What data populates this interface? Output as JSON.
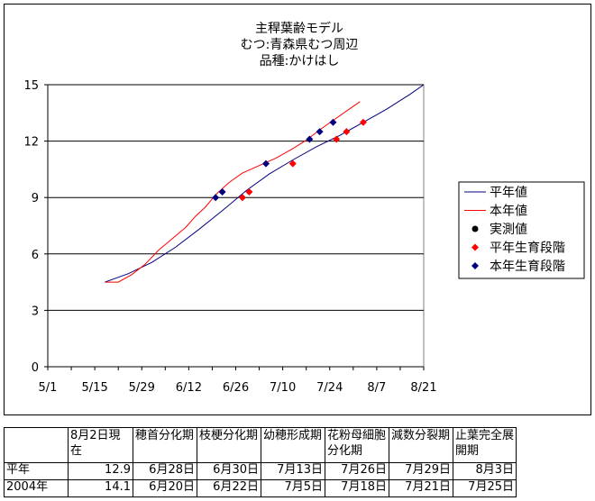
{
  "chart_data": {
    "type": "line",
    "title": [
      "主稈葉齢モデル",
      "むつ:青森県むつ周辺",
      "品種:かけはし"
    ],
    "xlabel": "",
    "ylabel": "",
    "x_ticks": [
      "5/1",
      "5/15",
      "5/29",
      "6/12",
      "6/26",
      "7/10",
      "7/24",
      "8/7",
      "8/21"
    ],
    "x_range": [
      "5/1",
      "8/21"
    ],
    "y_ticks": [
      0,
      3,
      6,
      9,
      12,
      15
    ],
    "ylim": [
      0,
      15
    ],
    "grid": "horizontal",
    "legend_position": "right",
    "series": [
      {
        "name": "平年値",
        "kind": "line",
        "color": "#000080",
        "x": [
          "5/18",
          "5/25",
          "6/1",
          "6/8",
          "6/15",
          "6/22",
          "6/29",
          "7/6",
          "7/13",
          "7/20",
          "7/27",
          "8/3",
          "8/10",
          "8/17",
          "8/21"
        ],
        "y": [
          4.5,
          4.95,
          5.55,
          6.35,
          7.3,
          8.3,
          9.35,
          10.25,
          11.0,
          11.7,
          12.3,
          13.0,
          13.7,
          14.5,
          15.0
        ]
      },
      {
        "name": "本年値",
        "kind": "line",
        "color": "#ff0000",
        "x": [
          "5/18",
          "5/22",
          "5/26",
          "5/30",
          "6/3",
          "6/7",
          "6/11",
          "6/14",
          "6/17",
          "6/20",
          "6/24",
          "6/28",
          "7/3",
          "7/8",
          "7/13",
          "7/17",
          "7/21",
          "7/25",
          "7/29",
          "8/2"
        ],
        "y": [
          4.5,
          4.5,
          4.9,
          5.45,
          6.2,
          6.8,
          7.4,
          8.0,
          8.5,
          9.15,
          9.8,
          10.3,
          10.7,
          11.1,
          11.6,
          12.05,
          12.6,
          13.1,
          13.6,
          14.1
        ]
      },
      {
        "name": "実測値",
        "kind": "marker",
        "marker": "circle",
        "color": "#000000",
        "x": [],
        "y": []
      },
      {
        "name": "平年生育段階",
        "kind": "marker",
        "marker": "diamond",
        "color": "#ff0000",
        "x": [
          "6/28",
          "6/30",
          "7/13",
          "7/26",
          "7/29",
          "8/3"
        ],
        "y": [
          9.0,
          9.3,
          10.8,
          12.1,
          12.5,
          13.0
        ]
      },
      {
        "name": "本年生育段階",
        "kind": "marker",
        "marker": "diamond",
        "color": "#000080",
        "x": [
          "6/20",
          "6/22",
          "7/5",
          "7/18",
          "7/21",
          "7/25"
        ],
        "y": [
          9.0,
          9.3,
          10.8,
          12.1,
          12.5,
          13.0
        ]
      }
    ]
  },
  "table": {
    "headers": [
      "",
      "8月2日現在",
      "穂首分化期",
      "枝梗分化期",
      "幼穂形成期",
      "花粉母細胞分化期",
      "減数分裂期",
      "止葉完全展開期"
    ],
    "rows": [
      [
        "平年",
        "12.9",
        "6月28日",
        "6月30日",
        "7月13日",
        "7月26日",
        "7月29日",
        "8月3日"
      ],
      [
        "2004年",
        "14.1",
        "6月20日",
        "6月22日",
        "7月5日",
        "7月18日",
        "7月21日",
        "7月25日"
      ]
    ]
  }
}
